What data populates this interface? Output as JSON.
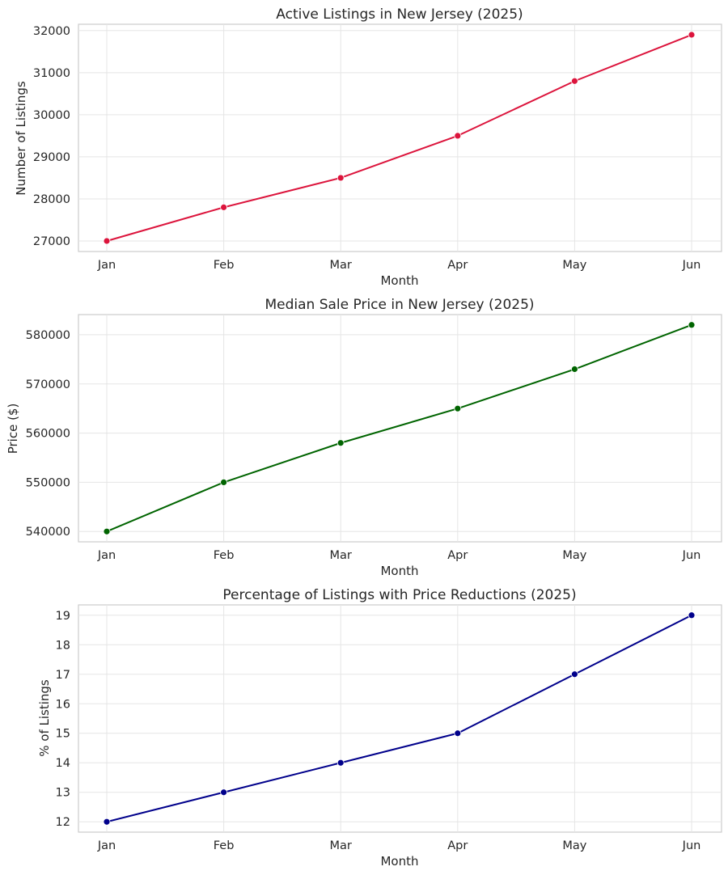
{
  "chart_data": [
    {
      "type": "line",
      "title": "Active Listings in New Jersey (2025)",
      "xlabel": "Month",
      "ylabel": "Number of Listings",
      "categories": [
        "Jan",
        "Feb",
        "Mar",
        "Apr",
        "May",
        "Jun"
      ],
      "values": [
        27000,
        27800,
        28500,
        29500,
        30800,
        31900
      ],
      "ylim": [
        26750,
        32150
      ],
      "yticks": [
        27000,
        28000,
        29000,
        30000,
        31000,
        32000
      ],
      "color": "#dc143c",
      "grid": true
    },
    {
      "type": "line",
      "title": "Median Sale Price in New Jersey (2025)",
      "xlabel": "Month",
      "ylabel": "Price ($)",
      "categories": [
        "Jan",
        "Feb",
        "Mar",
        "Apr",
        "May",
        "Jun"
      ],
      "values": [
        540000,
        550000,
        558000,
        565000,
        573000,
        582000
      ],
      "ylim": [
        537900,
        584100
      ],
      "yticks": [
        540000,
        550000,
        560000,
        570000,
        580000
      ],
      "color": "#006400",
      "grid": true
    },
    {
      "type": "line",
      "title": "Percentage of Listings with Price Reductions (2025)",
      "xlabel": "Month",
      "ylabel": "% of Listings",
      "categories": [
        "Jan",
        "Feb",
        "Mar",
        "Apr",
        "May",
        "Jun"
      ],
      "values": [
        12,
        13,
        14,
        15,
        17,
        19
      ],
      "ylim": [
        11.65,
        19.35
      ],
      "yticks": [
        12,
        13,
        14,
        15,
        16,
        17,
        18,
        19
      ],
      "color": "#00008b",
      "grid": true
    }
  ]
}
